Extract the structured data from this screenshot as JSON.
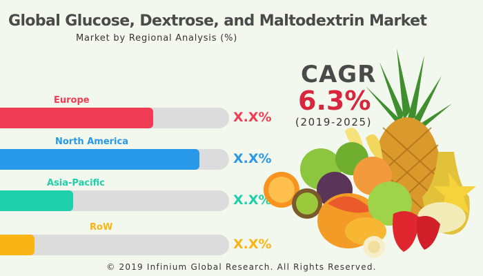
{
  "title": "Global Glucose, Dextrose, and Maltodextrin Market",
  "subtitle": "Market by Regional Analysis (%)",
  "cagr": {
    "label": "CAGR",
    "value": "6.3%",
    "period": "(2019-2025)",
    "color": "#d7263d"
  },
  "footer": "© 2019 Infinium Global Research. All Rights Reserved.",
  "chart_data": {
    "type": "bar",
    "orientation": "horizontal",
    "categories": [
      "Europe",
      "North America",
      "Asia-Pacific",
      "RoW"
    ],
    "values": [
      67,
      87,
      32,
      15
    ],
    "value_labels": [
      "X.X%",
      "X.X%",
      "X.X%",
      "X.X%"
    ],
    "max": 100,
    "colors": [
      "#f03b55",
      "#2799e8",
      "#1fcfa9",
      "#f9b416"
    ],
    "track_color": "#dcdcdc",
    "grid": false,
    "legend": "none"
  },
  "illustration": {
    "icon": "fruit-assortment-icon"
  }
}
